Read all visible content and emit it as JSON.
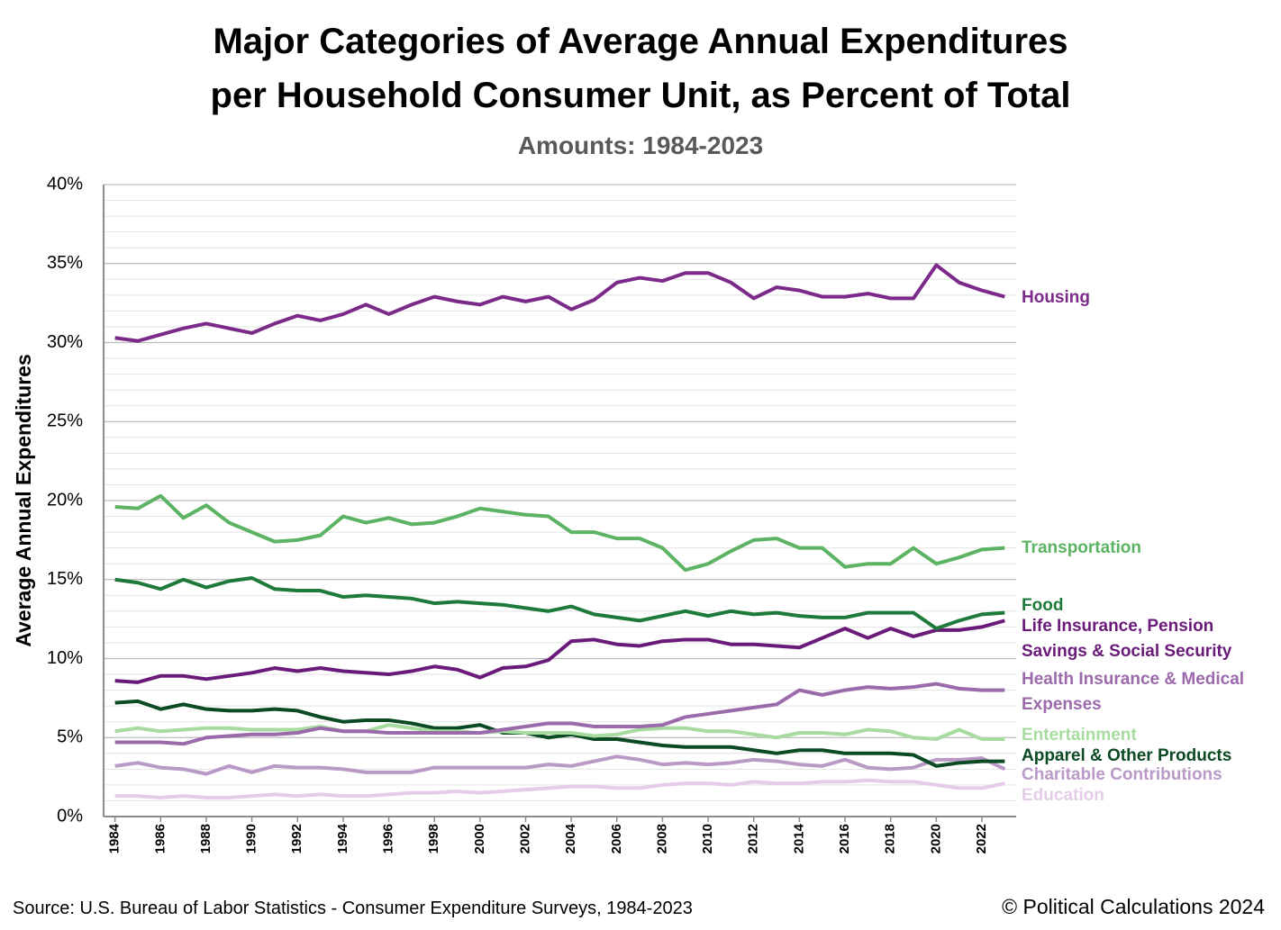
{
  "chart_data": {
    "type": "line",
    "title": [
      "Major Categories of Average Annual Expenditures",
      "per Household Consumer Unit, as Percent of Total"
    ],
    "subtitle": "Amounts: 1984-2023",
    "y_label": "Average Annual Expenditures",
    "source": "Source: U.S. Bureau of Labor Statistics - Consumer Expenditure Surveys, 1984-2023",
    "credit": "© Political Calculations 2024",
    "x": [
      1984,
      1985,
      1986,
      1987,
      1988,
      1989,
      1990,
      1991,
      1992,
      1993,
      1994,
      1995,
      1996,
      1997,
      1998,
      1999,
      2000,
      2001,
      2002,
      2003,
      2004,
      2005,
      2006,
      2007,
      2008,
      2009,
      2010,
      2011,
      2012,
      2013,
      2014,
      2015,
      2016,
      2017,
      2018,
      2019,
      2020,
      2021,
      2022,
      2023
    ],
    "xlim": [
      1983.5,
      2023.5
    ],
    "xticks": [
      1984,
      1986,
      1988,
      1990,
      1992,
      1994,
      1996,
      1998,
      2000,
      2002,
      2004,
      2006,
      2008,
      2010,
      2012,
      2014,
      2016,
      2018,
      2020,
      2022
    ],
    "ylim": [
      0,
      40
    ],
    "yticks": [
      {
        "value": 0,
        "label": "0%"
      },
      {
        "value": 5,
        "label": "5%"
      },
      {
        "value": 10,
        "label": "10%"
      },
      {
        "value": 15,
        "label": "15%"
      },
      {
        "value": 20,
        "label": "20%"
      },
      {
        "value": 25,
        "label": "25%"
      },
      {
        "value": 30,
        "label": "30%"
      },
      {
        "value": 35,
        "label": "35%"
      },
      {
        "value": 40,
        "label": "40%"
      }
    ],
    "yminor": [
      1,
      2,
      3,
      4,
      6,
      7,
      8,
      9,
      11,
      12,
      13,
      14,
      16,
      17,
      18,
      19,
      21,
      22,
      23,
      24,
      26,
      27,
      28,
      29,
      31,
      32,
      33,
      34,
      36,
      37,
      38,
      39
    ],
    "grid": true,
    "series": [
      {
        "name": "Housing",
        "color": "#7b2a8a",
        "values": [
          30.3,
          30.1,
          30.5,
          30.9,
          31.2,
          30.9,
          30.6,
          31.2,
          31.7,
          31.4,
          31.8,
          32.4,
          31.8,
          32.4,
          32.9,
          32.6,
          32.4,
          32.9,
          32.6,
          32.9,
          32.1,
          32.7,
          33.8,
          34.1,
          33.9,
          34.4,
          34.4,
          33.8,
          32.8,
          33.5,
          33.3,
          32.9,
          32.9,
          33.1,
          32.8,
          32.8,
          34.9,
          33.8,
          33.3,
          32.9
        ]
      },
      {
        "name": "Transportation",
        "color": "#5cb363",
        "values": [
          19.6,
          19.5,
          20.3,
          18.9,
          19.7,
          18.6,
          18.0,
          17.4,
          17.5,
          17.8,
          19.0,
          18.6,
          18.9,
          18.5,
          18.6,
          19.0,
          19.5,
          19.3,
          19.1,
          19.0,
          18.0,
          18.0,
          17.6,
          17.6,
          17.0,
          15.6,
          16.0,
          16.8,
          17.5,
          17.6,
          17.0,
          17.0,
          15.8,
          16.0,
          16.0,
          17.0,
          16.0,
          16.4,
          16.9,
          17.0
        ]
      },
      {
        "name": "Food",
        "color": "#1e7a3a",
        "values": [
          15.0,
          14.8,
          14.4,
          15.0,
          14.5,
          14.9,
          15.1,
          14.4,
          14.3,
          14.3,
          13.9,
          14.0,
          13.9,
          13.8,
          13.5,
          13.6,
          13.5,
          13.4,
          13.2,
          13.0,
          13.3,
          12.8,
          12.6,
          12.4,
          12.7,
          13.0,
          12.7,
          13.0,
          12.8,
          12.9,
          12.7,
          12.6,
          12.6,
          12.9,
          12.9,
          12.9,
          11.9,
          12.4,
          12.8,
          12.9
        ]
      },
      {
        "name": "Life Insurance, Pension Savings & Social Security",
        "color": "#6a1b7a",
        "values": [
          8.6,
          8.5,
          8.9,
          8.9,
          8.7,
          8.9,
          9.1,
          9.4,
          9.2,
          9.4,
          9.2,
          9.1,
          9.0,
          9.2,
          9.5,
          9.3,
          8.8,
          9.4,
          9.5,
          9.9,
          11.1,
          11.2,
          10.9,
          10.8,
          11.1,
          11.2,
          11.2,
          10.9,
          10.9,
          10.8,
          10.7,
          11.3,
          11.9,
          11.3,
          11.9,
          11.4,
          11.8,
          11.8,
          12.0,
          12.4
        ]
      },
      {
        "name": "Health Insurance & Medical Expenses",
        "color": "#9a6aab",
        "values": [
          4.7,
          4.7,
          4.7,
          4.6,
          5.0,
          5.1,
          5.2,
          5.2,
          5.3,
          5.6,
          5.4,
          5.4,
          5.3,
          5.3,
          5.3,
          5.3,
          5.3,
          5.5,
          5.7,
          5.9,
          5.9,
          5.7,
          5.7,
          5.7,
          5.8,
          6.3,
          6.5,
          6.7,
          6.9,
          7.1,
          8.0,
          7.7,
          8.0,
          8.2,
          8.1,
          8.2,
          8.4,
          8.1,
          8.0,
          8.0
        ]
      },
      {
        "name": "Entertainment",
        "color": "#a8dba0",
        "values": [
          5.4,
          5.6,
          5.4,
          5.5,
          5.6,
          5.6,
          5.5,
          5.5,
          5.5,
          5.7,
          5.4,
          5.4,
          5.8,
          5.6,
          5.4,
          5.4,
          5.3,
          5.4,
          5.3,
          5.3,
          5.3,
          5.1,
          5.2,
          5.5,
          5.6,
          5.6,
          5.4,
          5.4,
          5.2,
          5.0,
          5.3,
          5.3,
          5.2,
          5.5,
          5.4,
          5.0,
          4.9,
          5.5,
          4.9,
          4.9
        ]
      },
      {
        "name": "Apparel & Other Products",
        "color": "#0b4a22",
        "values": [
          7.2,
          7.3,
          6.8,
          7.1,
          6.8,
          6.7,
          6.7,
          6.8,
          6.7,
          6.3,
          6.0,
          6.1,
          6.1,
          5.9,
          5.6,
          5.6,
          5.8,
          5.3,
          5.3,
          5.0,
          5.2,
          4.9,
          4.9,
          4.7,
          4.5,
          4.4,
          4.4,
          4.4,
          4.2,
          4.0,
          4.2,
          4.2,
          4.0,
          4.0,
          4.0,
          3.9,
          3.2,
          3.4,
          3.5,
          3.5
        ]
      },
      {
        "name": "Charitable Contributions",
        "color": "#b99ac6",
        "values": [
          3.2,
          3.4,
          3.1,
          3.0,
          2.7,
          3.2,
          2.8,
          3.2,
          3.1,
          3.1,
          3.0,
          2.8,
          2.8,
          2.8,
          3.1,
          3.1,
          3.1,
          3.1,
          3.1,
          3.3,
          3.2,
          3.5,
          3.8,
          3.6,
          3.3,
          3.4,
          3.3,
          3.4,
          3.6,
          3.5,
          3.3,
          3.2,
          3.6,
          3.1,
          3.0,
          3.1,
          3.6,
          3.6,
          3.7,
          3.0
        ]
      },
      {
        "name": "Education",
        "color": "#e5cce8",
        "values": [
          1.3,
          1.3,
          1.2,
          1.3,
          1.2,
          1.2,
          1.3,
          1.4,
          1.3,
          1.4,
          1.3,
          1.3,
          1.4,
          1.5,
          1.5,
          1.6,
          1.5,
          1.6,
          1.7,
          1.8,
          1.9,
          1.9,
          1.8,
          1.8,
          2.0,
          2.1,
          2.1,
          2.0,
          2.2,
          2.1,
          2.1,
          2.2,
          2.2,
          2.3,
          2.2,
          2.2,
          2.0,
          1.8,
          1.8,
          2.1
        ]
      }
    ]
  }
}
